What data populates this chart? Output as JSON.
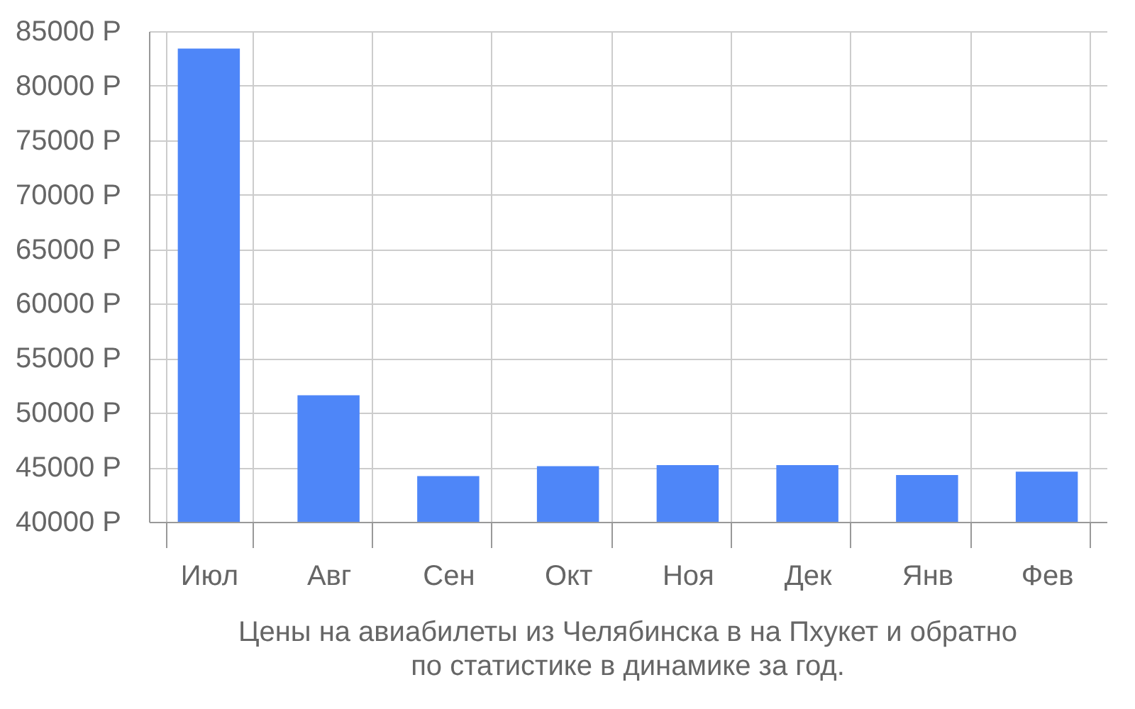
{
  "chart_data": {
    "type": "bar",
    "title": "Цены на авиабилеты из Челябинска в на Пхукет и обратно",
    "subtitle": "по статистике в динамике за год.",
    "categories": [
      "Июл",
      "Авг",
      "Сен",
      "Окт",
      "Ноя",
      "Дек",
      "Янв",
      "Фев"
    ],
    "values": [
      83400,
      51600,
      44200,
      45100,
      45200,
      45200,
      44300,
      44600
    ],
    "color": "#4e86f8",
    "ylim": [
      40000,
      85000
    ],
    "yticks": [
      {
        "value": 40000,
        "label": "40000 Р"
      },
      {
        "value": 45000,
        "label": "45000 Р"
      },
      {
        "value": 50000,
        "label": "50000 Р"
      },
      {
        "value": 55000,
        "label": "55000 Р"
      },
      {
        "value": 60000,
        "label": "60000 Р"
      },
      {
        "value": 65000,
        "label": "65000 Р"
      },
      {
        "value": 70000,
        "label": "70000 Р"
      },
      {
        "value": 75000,
        "label": "75000 Р"
      },
      {
        "value": 80000,
        "label": "80000 Р"
      },
      {
        "value": 85000,
        "label": "85000 Р"
      }
    ],
    "grid": true
  }
}
